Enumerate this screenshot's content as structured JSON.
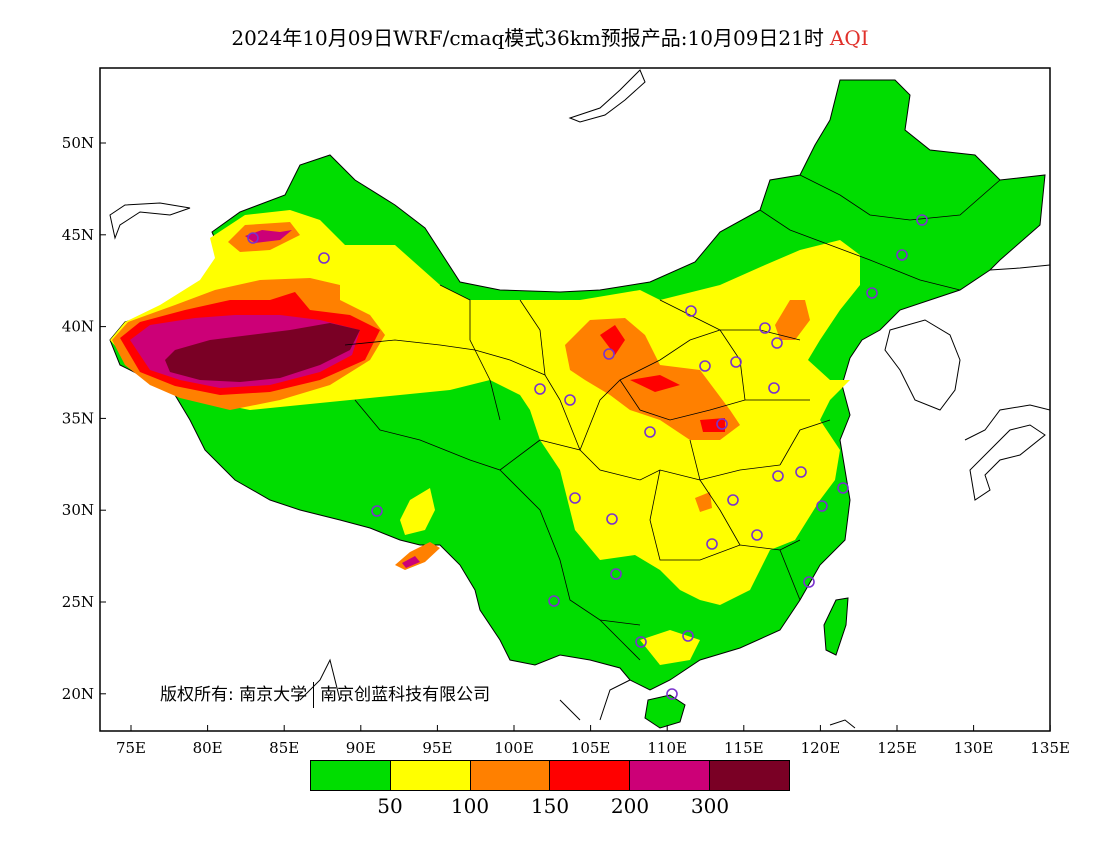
{
  "title": {
    "main": "2024年10月09日WRF/cmaq模式36km预报产品:10月09日21时",
    "variable": "AQI",
    "variable_color": "#e0312b"
  },
  "axes": {
    "lon_labels": [
      "75E",
      "80E",
      "85E",
      "90E",
      "95E",
      "100E",
      "105E",
      "110E",
      "115E",
      "120E",
      "125E",
      "130E",
      "135E"
    ],
    "lat_labels": [
      "50N",
      "45N",
      "40N",
      "35N",
      "30N",
      "25N",
      "20N"
    ]
  },
  "legend": {
    "colors": [
      "#00dd00",
      "#ffff00",
      "#ff8000",
      "#ff0000",
      "#cc0077",
      "#7a0025"
    ],
    "labels": [
      "50",
      "100",
      "150",
      "200",
      "300"
    ]
  },
  "copyright": {
    "prefix": "版权所有:",
    "org1": "南京大学",
    "org2": "南京创蓝科技有限公司"
  },
  "palette": {
    "ocean": "#ffffff",
    "border": "#000000",
    "station": "#7a33cc"
  }
}
